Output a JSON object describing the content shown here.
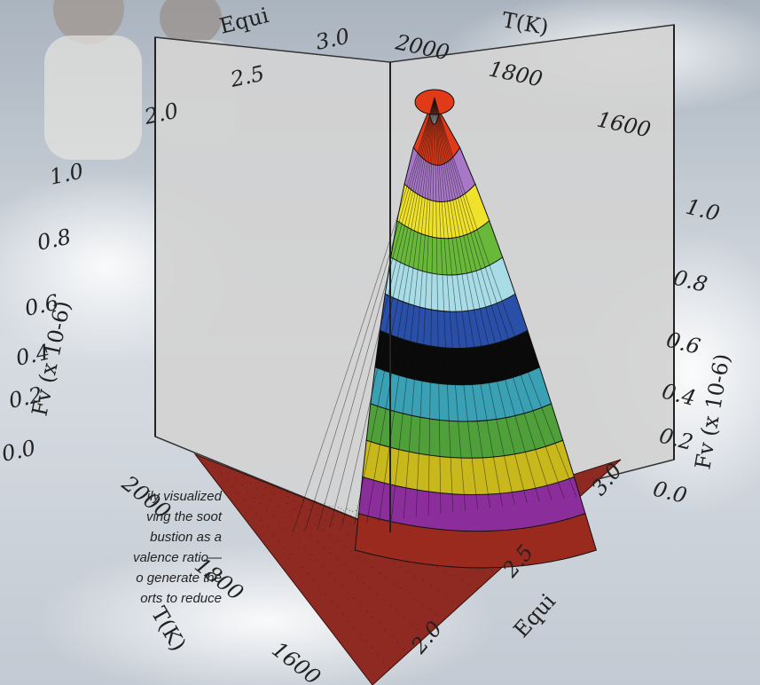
{
  "chart_data": {
    "type": "surface3d",
    "x_axis": {
      "label": "Equi",
      "ticks": [
        "2.0",
        "2.5",
        "3.0"
      ]
    },
    "y_axis": {
      "label": "T(K)",
      "ticks": [
        "2000",
        "1800",
        "1600"
      ]
    },
    "z_axis": {
      "label": "Fv (x 10-6)",
      "ticks": [
        "0.0",
        "0.2",
        "0.4",
        "0.6",
        "0.8",
        "1.0"
      ]
    },
    "zlim": [
      0.0,
      1.0
    ],
    "peak": {
      "z": 1.0
    },
    "color_bands": [
      {
        "from": 0.0,
        "to": 0.1,
        "color": "#9b2a1e"
      },
      {
        "from": 0.1,
        "to": 0.2,
        "color": "#8b2e9c"
      },
      {
        "from": 0.2,
        "to": 0.3,
        "color": "#c9b81c"
      },
      {
        "from": 0.3,
        "to": 0.4,
        "color": "#4fa03a"
      },
      {
        "from": 0.4,
        "to": 0.5,
        "color": "#3aa0b4"
      },
      {
        "from": 0.5,
        "to": 0.6,
        "color": "#0a0a0a"
      },
      {
        "from": 0.6,
        "to": 0.7,
        "color": "#2a4fa8"
      },
      {
        "from": 0.7,
        "to": 0.8,
        "color": "#a8dce6"
      },
      {
        "from": 0.8,
        "to": 0.9,
        "color": "#68b83a"
      },
      {
        "from": 0.9,
        "to": 1.0,
        "color": "#f0e22a"
      },
      {
        "from": 1.0,
        "to": 1.1,
        "color": "#a877c8"
      },
      {
        "from": 1.1,
        "to": 1.2,
        "color": "#e03a18"
      }
    ]
  },
  "caption_lines": [
    "ily visualized",
    "ving the soot",
    "bustion as a",
    "valence ratio—",
    "o generate the",
    "orts to reduce"
  ]
}
